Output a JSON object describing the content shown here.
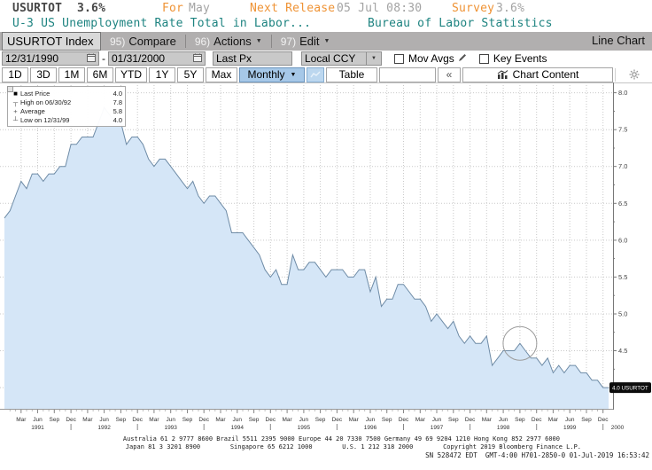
{
  "header": {
    "ticker": "USURTOT",
    "last_value": "3.6%",
    "for_label": "For",
    "for_value": "May",
    "next_release_label": "Next Release",
    "next_release_value": "05 Jul 08:30",
    "survey_label": "Survey",
    "survey_value": "3.6%",
    "description": "U-3 US Unemployment Rate Total in Labor...",
    "source": "Bureau of Labor Statistics"
  },
  "toolbar": {
    "security_field": "USURTOT Index",
    "menus": [
      {
        "num": "95)",
        "label": "Compare"
      },
      {
        "num": "96)",
        "label": "Actions"
      },
      {
        "num": "97)",
        "label": "Edit"
      }
    ],
    "view_label": "Line Chart"
  },
  "settings": {
    "date_from": "12/31/1990",
    "dash": "-",
    "date_to": "01/31/2000",
    "price_field": "Last Px",
    "currency": "Local CCY",
    "mov_avgs_label": "Mov Avgs",
    "key_events_label": "Key Events"
  },
  "periods": {
    "buttons": [
      "1D",
      "3D",
      "1M",
      "6M",
      "YTD",
      "1Y",
      "5Y",
      "Max"
    ],
    "frequency": "Monthly",
    "table_label": "Table",
    "collapse_label": "«",
    "chart_content_label": "Chart Content"
  },
  "legend": {
    "rows": [
      {
        "marker": "■",
        "label": "Last Price",
        "value": "4.0"
      },
      {
        "marker": "┬",
        "label": "High on 06/30/92",
        "value": "7.8"
      },
      {
        "marker": "+",
        "label": "Average",
        "value": "5.8"
      },
      {
        "marker": "┴",
        "label": "Low on 12/31/99",
        "value": "4.0"
      }
    ]
  },
  "chart_data": {
    "type": "area",
    "title": "USURTOT Index - U-3 US Unemployment Rate Total in Labor Force",
    "frequency": "monthly",
    "x_start": "1990-12",
    "x_end": "2000-01",
    "values": [
      6.3,
      6.4,
      6.6,
      6.8,
      6.7,
      6.9,
      6.9,
      6.8,
      6.9,
      6.9,
      7.0,
      7.0,
      7.3,
      7.3,
      7.4,
      7.4,
      7.4,
      7.6,
      7.8,
      7.7,
      7.6,
      7.6,
      7.3,
      7.4,
      7.4,
      7.3,
      7.1,
      7.0,
      7.1,
      7.1,
      7.0,
      6.9,
      6.8,
      6.7,
      6.8,
      6.6,
      6.5,
      6.6,
      6.6,
      6.5,
      6.4,
      6.1,
      6.1,
      6.1,
      6.0,
      5.9,
      5.8,
      5.6,
      5.5,
      5.6,
      5.4,
      5.4,
      5.8,
      5.6,
      5.6,
      5.7,
      5.7,
      5.6,
      5.5,
      5.6,
      5.6,
      5.6,
      5.5,
      5.5,
      5.6,
      5.6,
      5.3,
      5.5,
      5.1,
      5.2,
      5.2,
      5.4,
      5.4,
      5.3,
      5.2,
      5.2,
      5.1,
      4.9,
      5.0,
      4.9,
      4.8,
      4.9,
      4.7,
      4.6,
      4.7,
      4.6,
      4.6,
      4.7,
      4.3,
      4.4,
      4.5,
      4.5,
      4.5,
      4.6,
      4.5,
      4.4,
      4.4,
      4.3,
      4.4,
      4.2,
      4.3,
      4.2,
      4.3,
      4.3,
      4.2,
      4.2,
      4.1,
      4.1,
      4.0,
      4.0
    ],
    "y_ticks_labeled": [
      8.0,
      7.5,
      7.0,
      6.5,
      6.0,
      5.5,
      5.0,
      4.5
    ],
    "y_grid": [
      8.0,
      7.5,
      7.0,
      6.5,
      6.0,
      5.5,
      5.0,
      4.5,
      4.0
    ],
    "ylim": [
      3.7,
      8.14
    ],
    "quarter_months": [
      "Dec",
      "Mar",
      "Jun",
      "Sep"
    ],
    "years": [
      "1991",
      "1992",
      "1993",
      "1994",
      "1995",
      "1996",
      "1997",
      "1998",
      "1999"
    ],
    "final_year_label": "2000",
    "last_price": 4.0,
    "high": {
      "date": "06/30/92",
      "value": 7.8
    },
    "average": 5.8,
    "low": {
      "date": "12/31/99",
      "value": 4.0
    },
    "badge": "4.0 USURTOT",
    "annotation": {
      "type": "circle",
      "month": "1998-09",
      "index": 93,
      "value": 4.6
    },
    "grid": "dotted",
    "legend_position": "top-left",
    "colors": {
      "fill": "#d5e6f7",
      "line": "#6e8ba6",
      "accent_orange": "#ef9335",
      "teal": "#1d8380",
      "freq_blue": "#a6c8e8"
    }
  },
  "footer": {
    "line1": "Australia 61 2 9777 8600 Brazil 5511 2395 9000 Europe 44 20 7330 7500 Germany 49 69 9204 1210 Hong Kong 852 2977 6000",
    "line2": "Japan 81 3 3201 8900        Singapore 65 6212 1000        U.S. 1 212 318 2000        Copyright 2019 Bloomberg Finance L.P.",
    "line3": "SN 528472 EDT  GMT-4:00 H701-2850-0 01-Jul-2019 16:53:42"
  }
}
